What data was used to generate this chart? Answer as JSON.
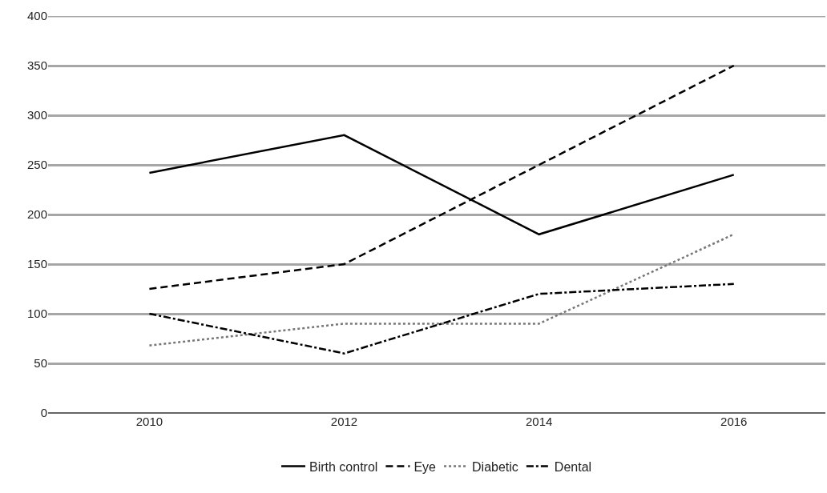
{
  "chart_data": {
    "type": "line",
    "categories": [
      "2010",
      "2012",
      "2014",
      "2016"
    ],
    "series": [
      {
        "name": "Birth control",
        "color": "#000000",
        "line_style": "solid",
        "values": [
          242,
          280,
          180,
          240
        ]
      },
      {
        "name": "Eye",
        "color": "#000000",
        "line_style": "dashed",
        "values": [
          125,
          150,
          250,
          350
        ]
      },
      {
        "name": "Diabetic",
        "color": "#777777",
        "line_style": "dotted",
        "values": [
          68,
          90,
          90,
          180
        ]
      },
      {
        "name": "Dental",
        "color": "#000000",
        "line_style": "dashdot",
        "values": [
          100,
          60,
          120,
          130
        ]
      }
    ],
    "ylim": [
      0,
      400
    ],
    "yticks": [
      0,
      50,
      100,
      150,
      200,
      250,
      300,
      350,
      400
    ],
    "grid": "y",
    "legend": "bottom",
    "marker": "none"
  }
}
